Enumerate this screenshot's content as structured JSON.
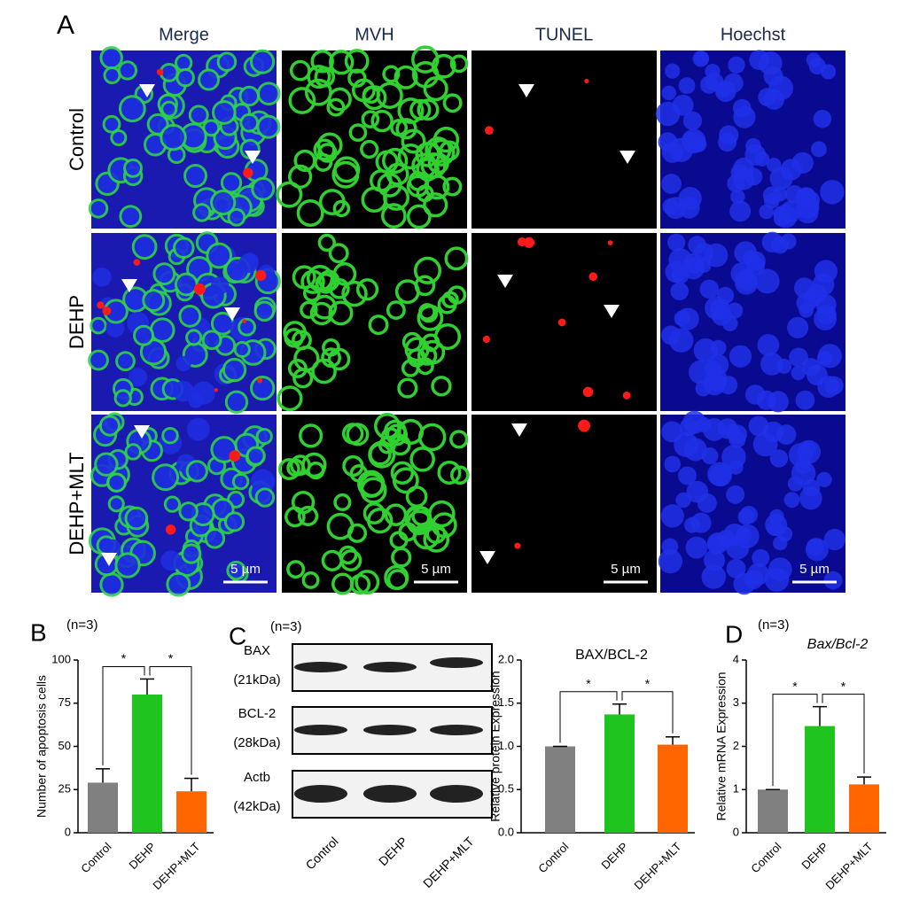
{
  "figure": {
    "panels": [
      "A",
      "B",
      "C",
      "D"
    ],
    "sample_sizes": [
      "(n=3)",
      "(n=3)",
      "(n=3)"
    ]
  },
  "micrographs": {
    "columns": [
      "Merge",
      "MVH",
      "TUNEL",
      "Hoechst"
    ],
    "rows": [
      "Control",
      "DEHP",
      "DEHP+MLT"
    ],
    "scale_bars": [
      "5 µm",
      "5 µm",
      "5 µm",
      "5 µm"
    ]
  },
  "blot": {
    "proteins": [
      {
        "name": "BAX",
        "size": "(21kDa)"
      },
      {
        "name": "BCL-2",
        "size": "(28kDa)"
      },
      {
        "name": "Actb",
        "size": "(42kDa)"
      }
    ],
    "lanes": [
      "Control",
      "DEHP",
      "DEHP+MLT"
    ]
  },
  "chart_data": [
    {
      "type": "bar",
      "ylabel": "Number of apoptosis cells",
      "categories": [
        "Control",
        "DEHP",
        "DEHP+MLT"
      ],
      "values": [
        29,
        80,
        24
      ],
      "errors": [
        8,
        9,
        7.5
      ],
      "colors": [
        "#808080",
        "#1fc41f",
        "#ff6600"
      ],
      "ylim": [
        0,
        100
      ],
      "yticks": [
        0,
        25,
        50,
        75,
        100
      ],
      "annotations": [
        "*",
        "*"
      ]
    },
    {
      "type": "bar",
      "title": "BAX/BCL-2",
      "ylabel": "Relative protein Expression",
      "categories": [
        "Control",
        "DEHP",
        "DEHP+MLT"
      ],
      "values": [
        1.0,
        1.37,
        1.02
      ],
      "errors": [
        0,
        0.12,
        0.09
      ],
      "colors": [
        "#808080",
        "#1fc41f",
        "#ff6600"
      ],
      "ylim": [
        0,
        2
      ],
      "yticks": [
        {
          "value": 0,
          "label": "0.0"
        },
        {
          "value": 0.5,
          "label": "0.5"
        },
        {
          "value": 1,
          "label": "1.0"
        },
        {
          "value": 1.5,
          "label": "1.5"
        },
        {
          "value": 2,
          "label": "2.0"
        }
      ],
      "annotations": [
        "*",
        "*"
      ]
    },
    {
      "type": "bar",
      "title": "Bax/Bcl-2",
      "ylabel": "Relative mRNA Expression",
      "categories": [
        "Control",
        "DEHP",
        "DEHP+MLT"
      ],
      "values": [
        1.0,
        2.47,
        1.12
      ],
      "errors": [
        0,
        0.45,
        0.17
      ],
      "colors": [
        "#808080",
        "#1fc41f",
        "#ff6600"
      ],
      "ylim": [
        0,
        4
      ],
      "yticks": [
        0,
        1,
        2,
        3,
        4
      ],
      "annotations": [
        "*",
        "*"
      ]
    }
  ]
}
